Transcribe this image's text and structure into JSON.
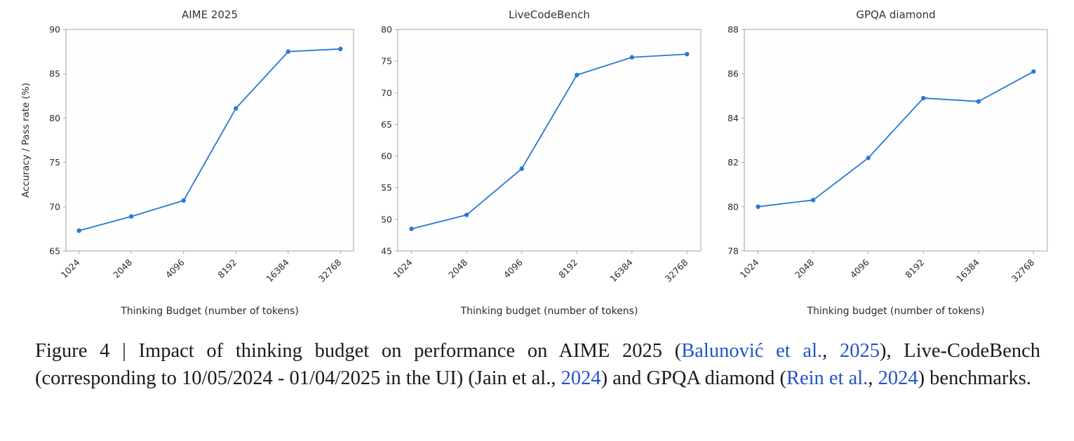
{
  "figure": {
    "caption": {
      "link_color": "#2353cc",
      "segments": [
        {
          "text": "Figure 4 | Impact of thinking budget on performance on AIME 2025 (",
          "link": false
        },
        {
          "text": "Balunović et al.",
          "link": true
        },
        {
          "text": ", ",
          "link": false
        },
        {
          "text": "2025",
          "link": true
        },
        {
          "text": "), Live-CodeBench (corresponding to 10/05/2024 - 01/04/2025 in the UI) (Jain et al., ",
          "link": false
        },
        {
          "text": "2024",
          "link": true
        },
        {
          "text": ") and GPQA diamond (",
          "link": false
        },
        {
          "text": "Rein et al.",
          "link": true
        },
        {
          "text": ", ",
          "link": false
        },
        {
          "text": "2024",
          "link": true
        },
        {
          "text": ") benchmarks.",
          "link": false
        }
      ]
    }
  },
  "chart_data": [
    {
      "type": "line",
      "title": "AIME 2025",
      "xlabel": "Thinking Budget (number of tokens)",
      "ylabel": "Accuracy / Pass rate (%)",
      "categories": [
        "1024",
        "2048",
        "4096",
        "8192",
        "16384",
        "32768"
      ],
      "values": [
        67.3,
        68.9,
        70.7,
        81.1,
        87.5,
        87.8
      ],
      "ylim": [
        65,
        90
      ],
      "yticks": [
        65,
        70,
        75,
        80,
        85,
        90
      ],
      "line_color": "#2878d8",
      "legend": "none",
      "grid": false
    },
    {
      "type": "line",
      "title": "LiveCodeBench",
      "xlabel": "Thinking budget (number of tokens)",
      "ylabel": "",
      "categories": [
        "1024",
        "2048",
        "4096",
        "8192",
        "16384",
        "32768"
      ],
      "values": [
        48.5,
        50.7,
        58.0,
        72.8,
        75.6,
        76.1
      ],
      "ylim": [
        45,
        80
      ],
      "yticks": [
        45,
        50,
        55,
        60,
        65,
        70,
        75,
        80
      ],
      "line_color": "#2878d8",
      "legend": "none",
      "grid": false
    },
    {
      "type": "line",
      "title": "GPQA diamond",
      "xlabel": "Thinking budget (number of tokens)",
      "ylabel": "",
      "categories": [
        "1024",
        "2048",
        "4096",
        "8192",
        "16384",
        "32768"
      ],
      "values": [
        80.0,
        80.3,
        82.2,
        84.9,
        84.75,
        86.1
      ],
      "ylim": [
        78,
        88
      ],
      "yticks": [
        78,
        80,
        82,
        84,
        86,
        88
      ],
      "line_color": "#2878d8",
      "legend": "none",
      "grid": false
    }
  ]
}
